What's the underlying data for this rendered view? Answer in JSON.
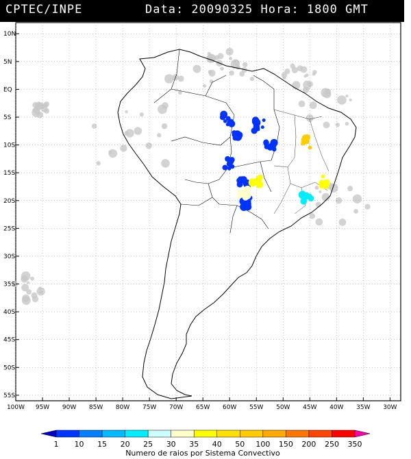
{
  "header": {
    "source": "CPTEC/INPE",
    "info": "Data: 20090325 Hora: 1800 GMT"
  },
  "map": {
    "lat_labels": [
      "10N",
      "5N",
      "EQ",
      "5S",
      "10S",
      "15S",
      "20S",
      "25S",
      "30S",
      "35S",
      "40S",
      "45S",
      "50S",
      "55S"
    ],
    "lon_labels": [
      "100W",
      "95W",
      "90W",
      "85W",
      "80W",
      "75W",
      "70W",
      "65W",
      "60W",
      "55W",
      "50W",
      "45W",
      "40W",
      "35W",
      "30W"
    ],
    "extent": {
      "lon_min": -100,
      "lon_max": -28,
      "lat_min": -56,
      "lat_max": 12
    }
  },
  "legend": {
    "title": "Numero de raios por Sistema Convectivo",
    "ticks": [
      "1",
      "10",
      "15",
      "20",
      "25",
      "30",
      "35",
      "40",
      "50",
      "100",
      "150",
      "200",
      "250",
      "350"
    ],
    "colors": [
      "#0000cc",
      "#0033ff",
      "#0080ff",
      "#00bbff",
      "#00eeff",
      "#ccffff",
      "#ffffcc",
      "#ffff00",
      "#ffe000",
      "#ffcc00",
      "#ffaa00",
      "#ff7700",
      "#ff4400",
      "#ff0000",
      "#ff00aa"
    ]
  },
  "clusters": [
    {
      "color": "#0033ff",
      "lon": -60.5,
      "lat": -5.5
    },
    {
      "color": "#0033ff",
      "lon": -58.5,
      "lat": -8.5
    },
    {
      "color": "#0033ff",
      "lon": -60.0,
      "lat": -13.5
    },
    {
      "color": "#0033ff",
      "lon": -57.5,
      "lat": -16.5
    },
    {
      "color": "#0033ff",
      "lon": -54.5,
      "lat": -6.5
    },
    {
      "color": "#0033ff",
      "lon": -52.5,
      "lat": -10.0
    },
    {
      "color": "#0033ff",
      "lon": -57.0,
      "lat": -20.5
    },
    {
      "color": "#ffcc00",
      "lon": -45.5,
      "lat": -9.5
    },
    {
      "color": "#ffff00",
      "lon": -42.5,
      "lat": -16.5
    },
    {
      "color": "#ffff00",
      "lon": -55.0,
      "lat": -16.5
    },
    {
      "color": "#00eeff",
      "lon": -45.5,
      "lat": -19.5
    },
    {
      "color": "#ffffcc",
      "lon": -57.5,
      "lat": -18.8
    }
  ]
}
